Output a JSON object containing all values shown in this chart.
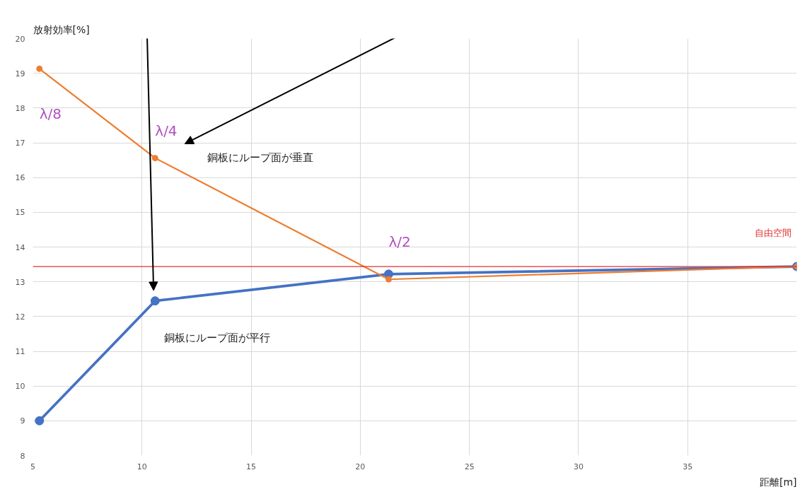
{
  "chart_data": {
    "type": "line",
    "xlabel": "距離[m]",
    "ylabel": "放射効率[%]",
    "x": [
      5.3,
      10.6,
      21.3,
      40
    ],
    "series": [
      {
        "color": "#ed7d31",
        "values": [
          19.13,
          16.56,
          13.07,
          13.44
        ]
      },
      {
        "color": "#4472c4",
        "values": [
          9.0,
          12.45,
          13.22,
          13.44
        ]
      }
    ],
    "xlim": [
      5,
      40
    ],
    "ylim": [
      8,
      20
    ],
    "xticks": [
      5,
      10,
      15,
      20,
      25,
      30,
      35
    ],
    "yticks": [
      8,
      9,
      10,
      11,
      12,
      13,
      14,
      15,
      16,
      17,
      18,
      19,
      20
    ],
    "grid": true,
    "marker": "circle",
    "line_style": "solid",
    "ref_lines": [
      {
        "axis": "y",
        "value": 13.44,
        "label": "自由空間",
        "color": "#e03030"
      }
    ],
    "annotations": [
      "λ/8",
      "λ/4",
      "λ/2",
      "銅板にループ面が垂直",
      "銅板にループ面が平行"
    ]
  }
}
